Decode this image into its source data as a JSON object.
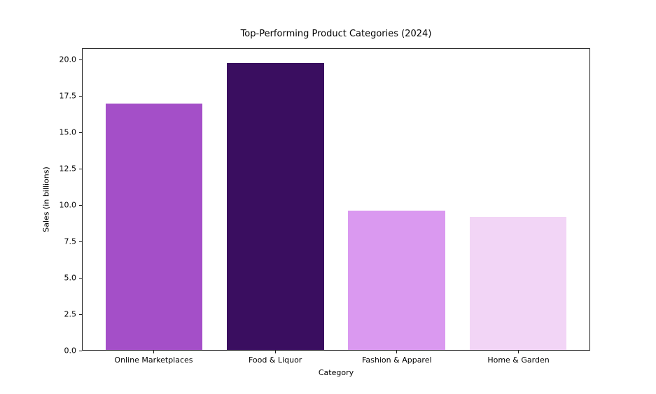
{
  "chart_data": {
    "type": "bar",
    "title": "Top-Performing Product Categories (2024)",
    "xlabel": "Category",
    "ylabel": "Sales (in billions)",
    "categories": [
      "Online Marketplaces",
      "Food & Liquor",
      "Fashion & Apparel",
      "Home & Garden"
    ],
    "values": [
      17.0,
      19.8,
      9.6,
      9.2
    ],
    "bar_colors": [
      "#a44fc8",
      "#3a0e60",
      "#da99f0",
      "#f2d5f6"
    ],
    "ylim": [
      0,
      20.79
    ],
    "y_ticks": [
      0.0,
      2.5,
      5.0,
      7.5,
      10.0,
      12.5,
      15.0,
      17.5,
      20.0
    ],
    "y_tick_labels": [
      "0.0",
      "2.5",
      "5.0",
      "7.5",
      "10.0",
      "12.5",
      "15.0",
      "17.5",
      "20.0"
    ],
    "bar_width_fraction": 0.8,
    "x_margin": 0.59,
    "grid": false,
    "legend": null,
    "axis_color": "#1a1a1a",
    "background": "#ffffff",
    "text_color": "#000000"
  }
}
